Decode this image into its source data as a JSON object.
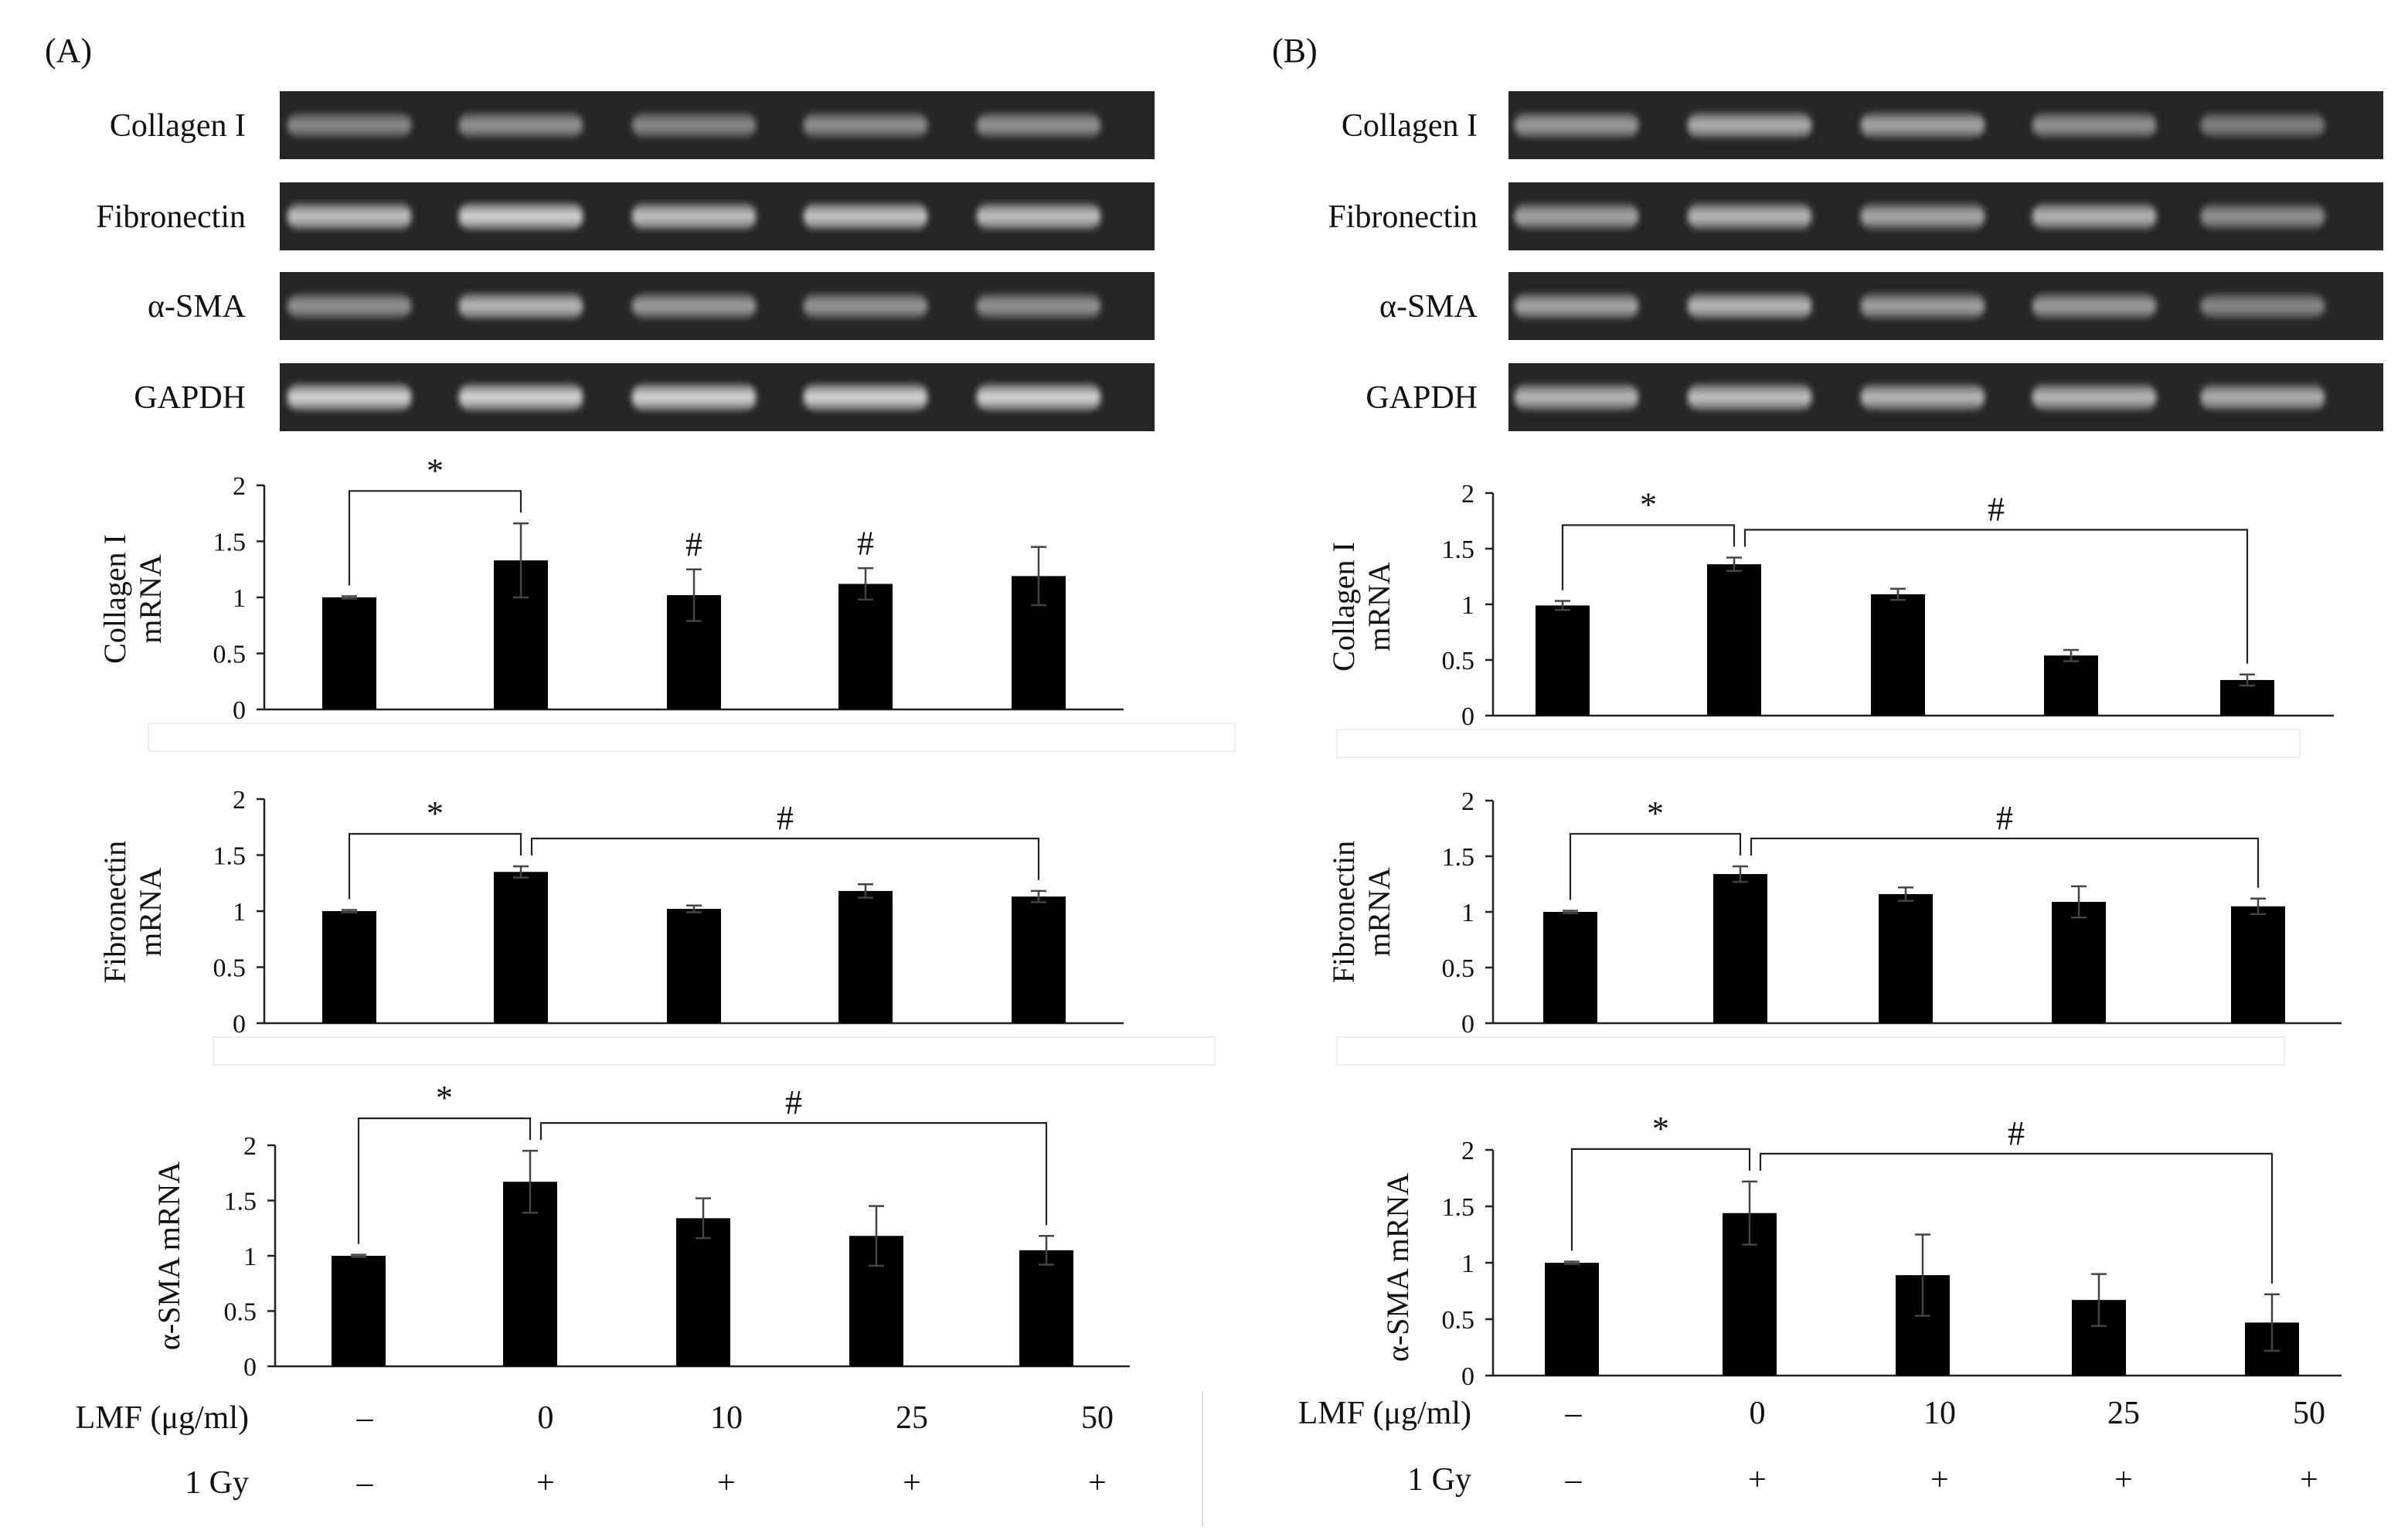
{
  "panels": [
    {
      "id": "A",
      "label": "(A)",
      "gel_rows": [
        "Collagen I",
        "Fibronectin",
        "α-SMA",
        "GAPDH"
      ],
      "conditions": {
        "lmf_label": "LMF (μg/ml)",
        "lmf_values": [
          "–",
          "0",
          "10",
          "25",
          "50"
        ],
        "gy_label": "1 Gy",
        "gy_values": [
          "–",
          "+",
          "+",
          "+",
          "+"
        ]
      }
    },
    {
      "id": "B",
      "label": "(B)",
      "gel_rows": [
        "Collagen I",
        "Fibronectin",
        "α-SMA",
        "GAPDH"
      ],
      "conditions": {
        "lmf_label": "LMF (μg/ml)",
        "lmf_values": [
          "–",
          "0",
          "10",
          "25",
          "50"
        ],
        "gy_label": "1 Gy",
        "gy_values": [
          "–",
          "+",
          "+",
          "+",
          "+"
        ]
      }
    }
  ],
  "chart_data": [
    {
      "panel": "A",
      "type": "bar",
      "ylabel": [
        "Collagen I",
        "mRNA"
      ],
      "categories": [
        "–",
        "0",
        "10",
        "25",
        "50"
      ],
      "values": [
        1.0,
        1.33,
        1.02,
        1.12,
        1.19
      ],
      "errors": [
        0.01,
        0.33,
        0.23,
        0.14,
        0.26
      ],
      "ylim": [
        0,
        2
      ],
      "yticks": [
        "0",
        "0.5",
        "1",
        "1.5",
        "2"
      ],
      "sig": [
        {
          "type": "bracket",
          "from": 0,
          "to": 1,
          "symbol": "*"
        },
        {
          "type": "marker",
          "at": 2,
          "symbol": "#"
        },
        {
          "type": "marker",
          "at": 3,
          "symbol": "#"
        }
      ]
    },
    {
      "panel": "A",
      "type": "bar",
      "ylabel": [
        "Fibronectin",
        "mRNA"
      ],
      "categories": [
        "–",
        "0",
        "10",
        "25",
        "50"
      ],
      "values": [
        1.0,
        1.35,
        1.02,
        1.18,
        1.13
      ],
      "errors": [
        0.01,
        0.05,
        0.03,
        0.06,
        0.05
      ],
      "ylim": [
        0,
        2
      ],
      "yticks": [
        "0",
        "0.5",
        "1",
        "1.5",
        "2"
      ],
      "sig": [
        {
          "type": "bracket",
          "from": 0,
          "to": 1,
          "symbol": "*"
        },
        {
          "type": "bracket",
          "from": 1,
          "to": 4,
          "symbol": "#"
        }
      ]
    },
    {
      "panel": "A",
      "type": "bar",
      "ylabel": [
        "α-SMA mRNA"
      ],
      "categories": [
        "–",
        "0",
        "10",
        "25",
        "50"
      ],
      "values": [
        1.0,
        1.67,
        1.34,
        1.18,
        1.05
      ],
      "errors": [
        0.01,
        0.28,
        0.18,
        0.27,
        0.13
      ],
      "ylim": [
        0,
        2
      ],
      "yticks": [
        "0",
        "0.5",
        "1",
        "1.5",
        "2"
      ],
      "sig": [
        {
          "type": "bracket",
          "from": 0,
          "to": 1,
          "symbol": "*"
        },
        {
          "type": "bracket",
          "from": 1,
          "to": 4,
          "symbol": "#"
        }
      ]
    },
    {
      "panel": "B",
      "type": "bar",
      "ylabel": [
        "Collagen I",
        "mRNA"
      ],
      "categories": [
        "–",
        "0",
        "10",
        "25",
        "50"
      ],
      "values": [
        0.99,
        1.36,
        1.09,
        0.54,
        0.32
      ],
      "errors": [
        0.04,
        0.06,
        0.05,
        0.05,
        0.05
      ],
      "ylim": [
        0,
        2
      ],
      "yticks": [
        "0",
        "0.5",
        "1",
        "1.5",
        "2"
      ],
      "sig": [
        {
          "type": "bracket",
          "from": 0,
          "to": 1,
          "symbol": "*"
        },
        {
          "type": "bracket",
          "from": 1,
          "to": 4,
          "symbol": "#"
        }
      ]
    },
    {
      "panel": "B",
      "type": "bar",
      "ylabel": [
        "Fibronectin",
        "mRNA"
      ],
      "categories": [
        "–",
        "0",
        "10",
        "25",
        "50"
      ],
      "values": [
        1.0,
        1.34,
        1.16,
        1.09,
        1.05
      ],
      "errors": [
        0.01,
        0.07,
        0.06,
        0.14,
        0.07
      ],
      "ylim": [
        0,
        2
      ],
      "yticks": [
        "0",
        "0.5",
        "1",
        "1.5",
        "2"
      ],
      "sig": [
        {
          "type": "bracket",
          "from": 0,
          "to": 1,
          "symbol": "*"
        },
        {
          "type": "bracket",
          "from": 1,
          "to": 4,
          "symbol": "#"
        }
      ]
    },
    {
      "panel": "B",
      "type": "bar",
      "ylabel": [
        "α-SMA mRNA"
      ],
      "categories": [
        "–",
        "0",
        "10",
        "25",
        "50"
      ],
      "values": [
        1.0,
        1.44,
        0.89,
        0.67,
        0.47
      ],
      "errors": [
        0.01,
        0.28,
        0.36,
        0.23,
        0.25
      ],
      "ylim": [
        0,
        2
      ],
      "yticks": [
        "0",
        "0.5",
        "1",
        "1.5",
        "2"
      ],
      "sig": [
        {
          "type": "bracket",
          "from": 0,
          "to": 1,
          "symbol": "*"
        },
        {
          "type": "bracket",
          "from": 1,
          "to": 4,
          "symbol": "#"
        }
      ]
    }
  ]
}
